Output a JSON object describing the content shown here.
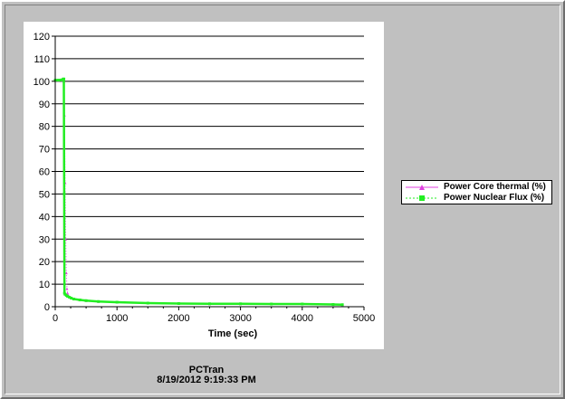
{
  "chart_data": {
    "type": "line",
    "xlabel": "Time (sec)",
    "ylabel": "",
    "xlim": [
      0,
      5000
    ],
    "ylim": [
      0,
      120
    ],
    "xticks": [
      0,
      1000,
      2000,
      3000,
      4000,
      5000
    ],
    "yticks": [
      0,
      10,
      20,
      30,
      40,
      50,
      60,
      70,
      80,
      90,
      100,
      110,
      120
    ],
    "grid": "horizontal",
    "legend_position": "right",
    "series": [
      {
        "name": "Power Core thermal (%)",
        "color": "#e040e0",
        "marker": "triangle",
        "x": [
          0,
          50,
          100,
          130,
          140,
          150,
          160,
          170,
          180,
          190,
          200,
          230,
          260,
          300,
          400,
          500,
          700,
          1000,
          1500,
          2000,
          2500,
          3000,
          3500,
          4000,
          4500,
          4650
        ],
        "y": [
          100.5,
          100.5,
          100.6,
          100.6,
          100,
          85,
          55,
          30,
          15,
          8,
          6,
          4.5,
          3.8,
          3.4,
          3.0,
          2.7,
          2.3,
          2.0,
          1.6,
          1.4,
          1.3,
          1.3,
          1.2,
          1.2,
          1.0,
          0.9
        ]
      },
      {
        "name": "Power Nuclear Flux (%)",
        "color": "#22ee22",
        "marker": "square",
        "x": [
          0,
          50,
          100,
          130,
          140,
          145,
          150,
          160,
          180,
          200,
          230,
          260,
          300,
          400,
          500,
          700,
          1000,
          1500,
          2000,
          2500,
          3000,
          3500,
          4000,
          4500,
          4650
        ],
        "y": [
          100.5,
          100.5,
          100.6,
          101,
          101,
          50,
          6,
          5.5,
          5,
          4.6,
          4.2,
          3.8,
          3.4,
          3.0,
          2.7,
          2.3,
          2.0,
          1.6,
          1.4,
          1.3,
          1.3,
          1.2,
          1.2,
          1.0,
          0.9
        ]
      }
    ]
  },
  "legend": {
    "entries": [
      {
        "label": "Power Core thermal (%)",
        "color": "#e040e0"
      },
      {
        "label": "Power Nuclear Flux (%)",
        "color": "#22ee22"
      }
    ]
  },
  "footer": {
    "app_name": "PCTran",
    "timestamp": "8/19/2012 9:19:33 PM"
  }
}
